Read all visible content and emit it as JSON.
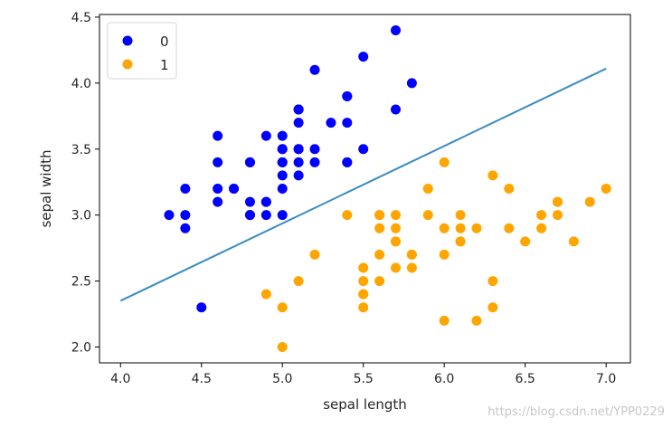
{
  "chart_data": {
    "type": "scatter",
    "title": "",
    "xlabel": "sepal length",
    "ylabel": "sepal width",
    "xlim": [
      3.87,
      7.15
    ],
    "ylim": [
      1.88,
      4.52
    ],
    "xticks": [
      4.0,
      4.5,
      5.0,
      5.5,
      6.0,
      6.5,
      7.0
    ],
    "xtick_labels": [
      "4.0",
      "4.5",
      "5.0",
      "5.5",
      "6.0",
      "6.5",
      "7.0"
    ],
    "yticks": [
      2.0,
      2.5,
      3.0,
      3.5,
      4.0,
      4.5
    ],
    "ytick_labels": [
      "2.0",
      "2.5",
      "3.0",
      "3.5",
      "4.0",
      "4.5"
    ],
    "grid": false,
    "legend_position": "top-left",
    "series": [
      {
        "name": "0",
        "color": "#0000ff",
        "x": [
          5.1,
          4.9,
          4.7,
          4.6,
          5.0,
          5.4,
          4.6,
          5.0,
          4.4,
          4.9,
          5.4,
          4.8,
          4.8,
          4.3,
          5.8,
          5.7,
          5.4,
          5.1,
          5.7,
          5.1,
          5.4,
          5.1,
          4.6,
          5.1,
          4.8,
          5.0,
          5.0,
          5.2,
          5.2,
          4.7,
          4.8,
          5.4,
          5.2,
          5.5,
          4.9,
          5.0,
          5.5,
          4.9,
          4.4,
          5.1,
          5.0,
          4.5,
          4.4,
          5.0,
          5.1,
          4.8,
          5.1,
          4.6,
          5.3,
          5.0
        ],
        "y": [
          3.5,
          3.0,
          3.2,
          3.1,
          3.6,
          3.9,
          3.4,
          3.4,
          2.9,
          3.1,
          3.7,
          3.4,
          3.0,
          3.0,
          4.0,
          4.4,
          3.9,
          3.5,
          3.8,
          3.8,
          3.4,
          3.7,
          3.6,
          3.3,
          3.4,
          3.0,
          3.4,
          3.5,
          3.4,
          3.2,
          3.1,
          3.4,
          4.1,
          4.2,
          3.1,
          3.2,
          3.5,
          3.6,
          3.0,
          3.4,
          3.5,
          2.3,
          3.2,
          3.5,
          3.8,
          3.0,
          3.8,
          3.2,
          3.7,
          3.3
        ]
      },
      {
        "name": "1",
        "color": "#ffa500",
        "x": [
          7.0,
          6.4,
          6.9,
          5.5,
          6.5,
          5.7,
          6.3,
          4.9,
          6.6,
          5.2,
          5.0,
          5.9,
          6.0,
          6.1,
          5.6,
          6.7,
          5.6,
          5.8,
          6.2,
          5.6,
          5.9,
          6.1,
          6.3,
          6.1,
          6.4,
          6.6,
          6.8,
          6.7,
          6.0,
          5.7,
          5.5,
          5.5,
          5.8,
          6.0,
          5.4,
          6.0,
          6.7,
          6.3,
          5.6,
          5.5,
          5.5,
          6.1,
          5.8,
          5.0,
          5.6,
          5.7,
          5.7,
          6.2,
          5.1,
          5.7
        ],
        "y": [
          3.2,
          3.2,
          3.1,
          2.3,
          2.8,
          2.8,
          3.3,
          2.4,
          2.9,
          2.7,
          2.0,
          3.0,
          2.2,
          2.9,
          2.9,
          3.1,
          3.0,
          2.7,
          2.2,
          2.5,
          3.2,
          2.8,
          2.5,
          2.8,
          2.9,
          3.0,
          2.8,
          3.0,
          2.9,
          2.6,
          2.4,
          2.4,
          2.7,
          2.7,
          3.0,
          3.4,
          3.1,
          2.3,
          3.0,
          2.5,
          2.6,
          3.0,
          2.6,
          2.3,
          2.7,
          3.0,
          2.9,
          2.9,
          2.5,
          2.8
        ]
      }
    ],
    "lines": [
      {
        "x": [
          4.0,
          7.0
        ],
        "y": [
          2.35,
          4.11
        ],
        "color": "#3b8bc2"
      }
    ]
  },
  "watermark": "https://blog.csdn.net/YPP0229"
}
